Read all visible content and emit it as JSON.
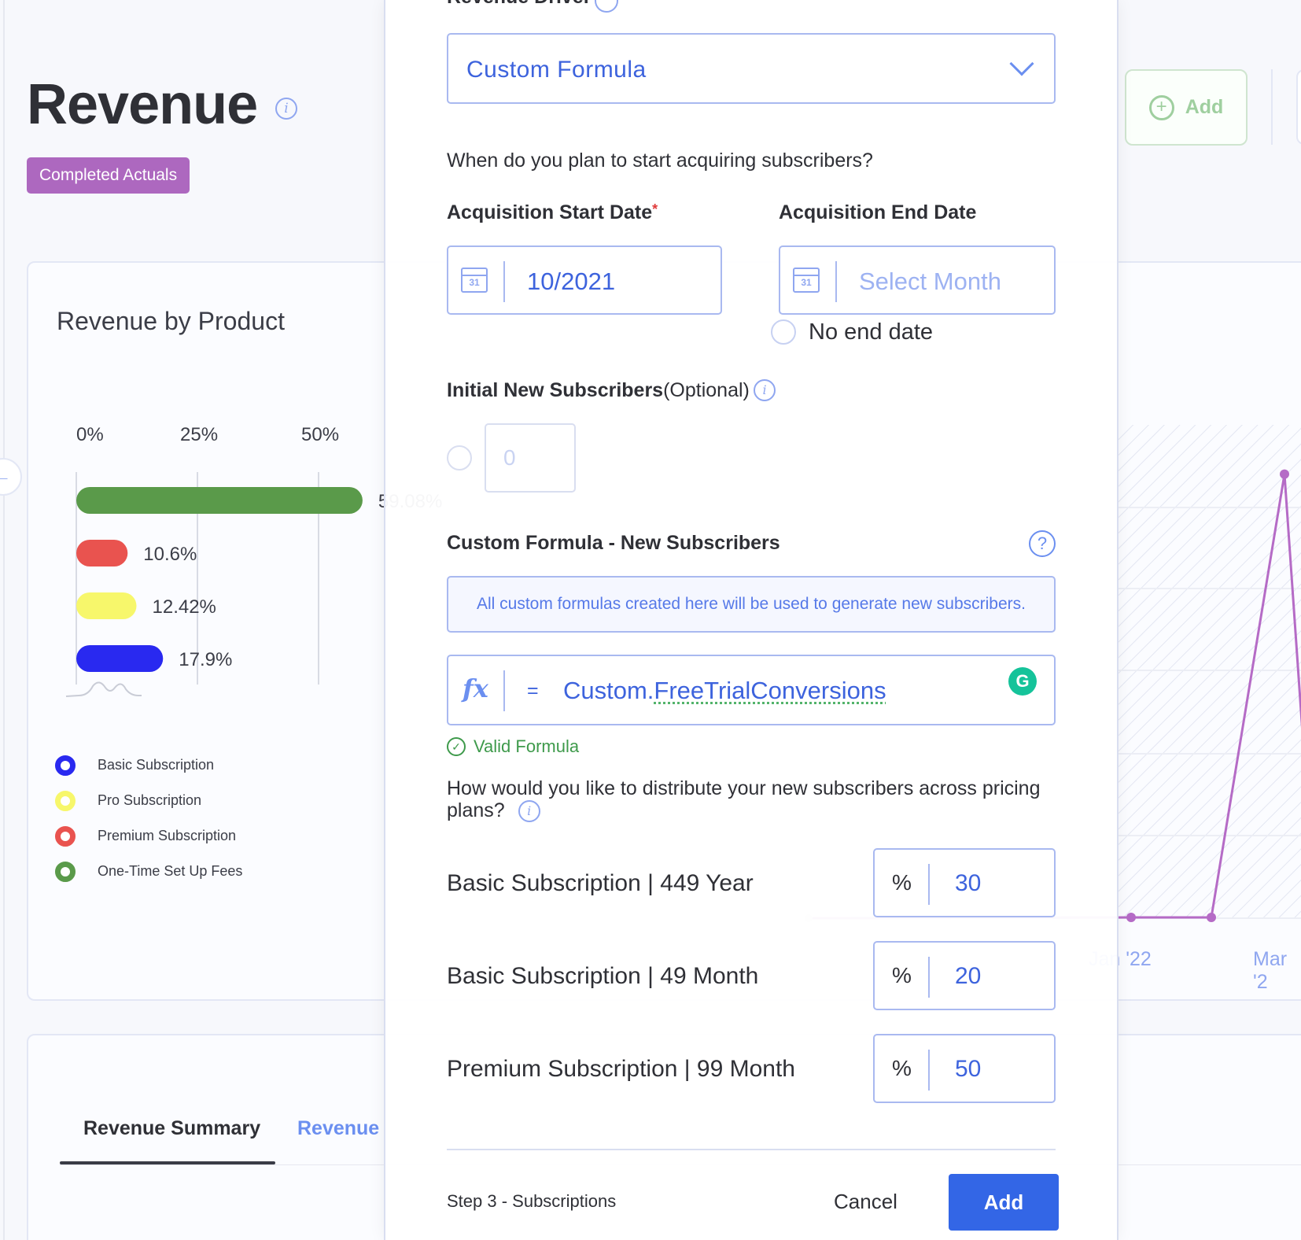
{
  "page": {
    "title": "Revenue",
    "badge": "Completed Actuals",
    "top_add_label": "Add"
  },
  "revenue_card": {
    "title": "Revenue by Product",
    "legend": [
      {
        "label": "Basic Subscription",
        "color": "#2929f0"
      },
      {
        "label": "Pro Subscription",
        "color": "#f7f76b"
      },
      {
        "label": "Premium Subscription",
        "color": "#e9534f"
      },
      {
        "label": "One-Time Set Up Fees",
        "color": "#5a9a4a"
      }
    ],
    "x_labels": [
      "Jan '22",
      "Mar '2"
    ]
  },
  "tabs": {
    "summary": "Revenue Summary",
    "details": "Revenue"
  },
  "chart_data": [
    {
      "type": "bar",
      "orientation": "horizontal",
      "title": "Revenue by Product",
      "x_ticks": [
        "0%",
        "25%",
        "50%"
      ],
      "categories": [
        "One-Time Set Up Fees",
        "Premium Subscription",
        "Pro Subscription",
        "Basic Subscription"
      ],
      "values": [
        59.08,
        10.6,
        12.42,
        17.9
      ],
      "labels": [
        "59.08%",
        "10.6%",
        "12.42%",
        "17.9%"
      ],
      "colors": [
        "#5a9a4a",
        "#e9534f",
        "#f7f76b",
        "#2929f0"
      ]
    },
    {
      "type": "line",
      "x_ticks": [
        "Jan '22",
        "Mar '2"
      ],
      "series": [
        {
          "color": "#b56bc6",
          "x": [
            "Jan '22",
            "Feb '22",
            "Mar '22"
          ],
          "y": [
            0,
            0,
            27
          ]
        }
      ]
    }
  ],
  "modal": {
    "driver_heading": "Revenue Driver",
    "driver_value": "Custom Formula",
    "acquire_question": "When do you plan to start acquiring subscribers?",
    "start_label": "Acquisition Start Date",
    "start_required": "*",
    "start_value": "10/2021",
    "end_label": "Acquisition End Date",
    "end_placeholder": "Select Month",
    "no_end_date": "No end date",
    "initial_label": "Initial New Subscribers",
    "initial_optional": "(Optional)",
    "initial_placeholder": "0",
    "formula_heading": "Custom Formula - New Subscribers",
    "formula_notice": "All custom formulas created here will be used to generate new subscribers.",
    "formula_fx": "fx",
    "formula_eq": "=",
    "formula_prefix": "Custom.",
    "formula_name": "FreeTrialConversions",
    "valid_text": "Valid Formula",
    "distribute_question": "How would you like to distribute your new subscribers across pricing plans?",
    "plans": [
      {
        "name": "Basic Subscription",
        "price": "449 Year",
        "pct": "30"
      },
      {
        "name": "Basic Subscription",
        "price": "49 Month",
        "pct": "20"
      },
      {
        "name": "Premium Subscription",
        "price": "99 Month",
        "pct": "50"
      }
    ],
    "pct_symbol": "%",
    "step_text": "Step 3 - Subscriptions",
    "cancel_label": "Cancel",
    "add_label": "Add"
  }
}
